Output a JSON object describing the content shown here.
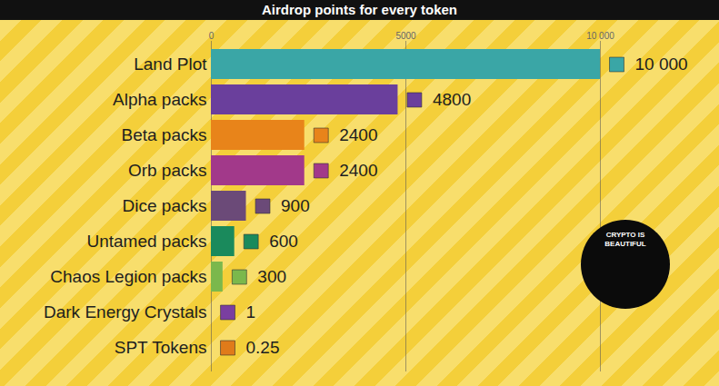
{
  "chart_data": {
    "type": "bar",
    "title": "Airdrop points for every token",
    "orientation": "horizontal",
    "categories": [
      "Land Plot",
      "Alpha packs",
      "Beta packs",
      "Orb packs",
      "Dice packs",
      "Untamed packs",
      "Chaos Legion packs",
      "Dark Energy Crystals",
      "SPT Tokens"
    ],
    "values": [
      10000,
      4800,
      2400,
      2400,
      900,
      600,
      300,
      1,
      0.25
    ],
    "value_labels": [
      "10 000",
      "4800",
      "2400",
      "2400",
      "900",
      "600",
      "300",
      "1",
      "0.25"
    ],
    "colors": [
      "#3aa6a6",
      "#6a3f9c",
      "#e8841a",
      "#a2398a",
      "#6b4a78",
      "#1a8a5c",
      "#7bb84c",
      "#7a3fa0",
      "#e07b1a"
    ],
    "xlim": [
      0,
      10000
    ],
    "xticks": [
      0,
      5000,
      {
        "value": 10000,
        "label": "10 000"
      }
    ],
    "grid": true,
    "data_labels": true,
    "annotations": [
      "CRYPTO IS BEAUTIFUL"
    ]
  }
}
